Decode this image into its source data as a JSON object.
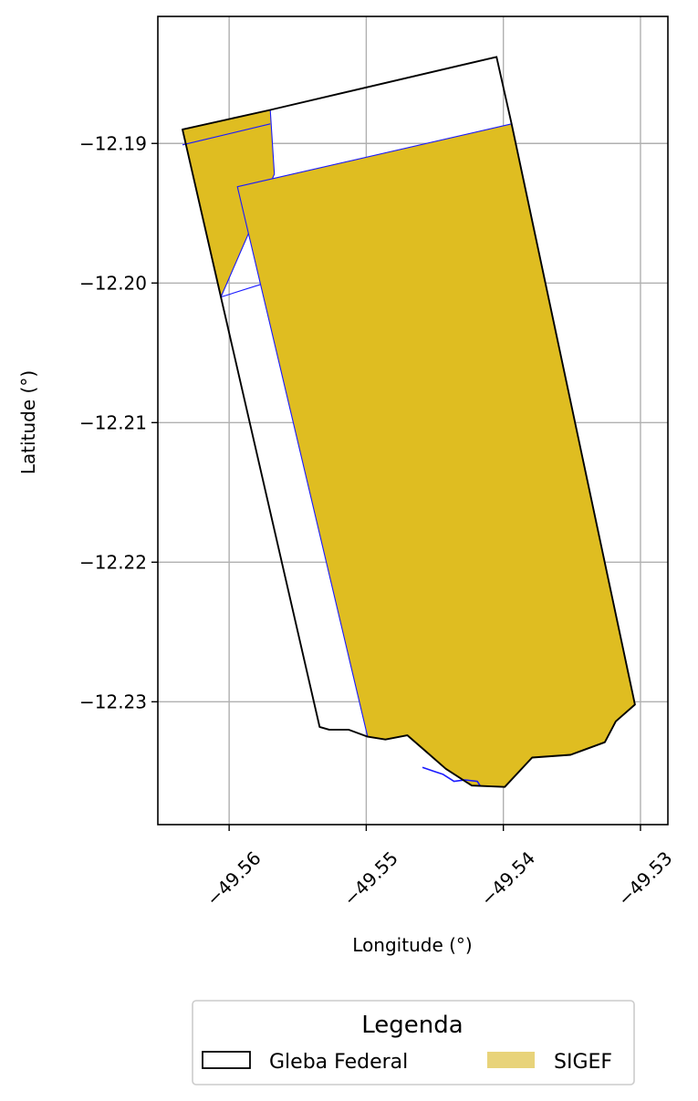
{
  "chart_data": {
    "type": "map",
    "xlabel": "Longitude (°)",
    "ylabel": "Latitude (°)",
    "xlim": [
      -49.5652,
      -49.528
    ],
    "ylim": [
      -12.2388,
      -12.1809
    ],
    "grid": true,
    "x_ticks": [
      {
        "value": -49.56,
        "label": "−49.56"
      },
      {
        "value": -49.55,
        "label": "−49.55"
      },
      {
        "value": -49.54,
        "label": "−49.54"
      },
      {
        "value": -49.53,
        "label": "−49.53"
      }
    ],
    "y_ticks": [
      {
        "value": -12.19,
        "label": "−12.19"
      },
      {
        "value": -12.2,
        "label": "−12.20"
      },
      {
        "value": -12.21,
        "label": "−12.21"
      },
      {
        "value": -12.22,
        "label": "−12.22"
      },
      {
        "value": -12.23,
        "label": "−12.23"
      }
    ],
    "colors": {
      "sigef_fill": "#dfbd21",
      "sigef_edge": "#1a1aff",
      "gleba_edge": "#000000",
      "grid": "#b0b0b0",
      "legend_sigef_patch": "#e8d37a"
    },
    "layers": [
      {
        "name": "SIGEF",
        "polygons": [
          [
            [
              -49.5634,
              -12.189
            ],
            [
              -49.557,
              -12.1876
            ],
            [
              -49.5567,
              -12.1922
            ],
            [
              -49.5606,
              -12.201
            ],
            [
              -49.5634,
              -12.189
            ]
          ],
          [
            [
              -49.5594,
              -12.1931
            ],
            [
              -49.5394,
              -12.1886
            ],
            [
              -49.5304,
              -12.2302
            ],
            [
              -49.5318,
              -12.2314
            ],
            [
              -49.5326,
              -12.2329
            ],
            [
              -49.5351,
              -12.2338
            ],
            [
              -49.5379,
              -12.234
            ],
            [
              -49.5399,
              -12.2361
            ],
            [
              -49.5423,
              -12.236
            ],
            [
              -49.5442,
              -12.2348
            ],
            [
              -49.5456,
              -12.2336
            ],
            [
              -49.547,
              -12.2324
            ],
            [
              -49.5486,
              -12.2327
            ],
            [
              -49.5499,
              -12.2325
            ],
            [
              -49.5594,
              -12.1931
            ]
          ]
        ]
      },
      {
        "name": "Gleba Federal",
        "polygons": [
          [
            [
              -49.5634,
              -12.189
            ],
            [
              -49.557,
              -12.1876
            ],
            [
              -49.5405,
              -12.1838
            ],
            [
              -49.5394,
              -12.1886
            ],
            [
              -49.5304,
              -12.2302
            ],
            [
              -49.5318,
              -12.2314
            ],
            [
              -49.5326,
              -12.2329
            ],
            [
              -49.5351,
              -12.2338
            ],
            [
              -49.5379,
              -12.234
            ],
            [
              -49.5399,
              -12.2361
            ],
            [
              -49.5423,
              -12.236
            ],
            [
              -49.5442,
              -12.2348
            ],
            [
              -49.5456,
              -12.2336
            ],
            [
              -49.547,
              -12.2324
            ],
            [
              -49.5486,
              -12.2327
            ],
            [
              -49.5499,
              -12.2325
            ],
            [
              -49.5513,
              -12.232
            ],
            [
              -49.5527,
              -12.232
            ],
            [
              -49.5534,
              -12.2318
            ],
            [
              -49.5606,
              -12.201
            ],
            [
              -49.5634,
              -12.189
            ]
          ]
        ]
      }
    ],
    "sigef_internal_lines": [
      [
        [
          -49.5634,
          -12.1901
        ],
        [
          -49.557,
          -12.1886
        ]
      ],
      [
        [
          -49.5606,
          -12.201
        ],
        [
          -49.5577,
          -12.2001
        ]
      ]
    ],
    "stream": [
      [
        -49.5459,
        -12.2347
      ],
      [
        -49.545,
        -12.235
      ],
      [
        -49.5444,
        -12.2352
      ],
      [
        -49.5436,
        -12.2357
      ],
      [
        -49.5428,
        -12.2356
      ],
      [
        -49.5419,
        -12.2357
      ],
      [
        -49.5417,
        -12.236
      ]
    ],
    "legend": {
      "title": "Legenda",
      "placement": "bottom-center",
      "entries": [
        {
          "label": "Gleba Federal",
          "style": "outline"
        },
        {
          "label": "SIGEF",
          "style": "filled"
        }
      ]
    }
  }
}
